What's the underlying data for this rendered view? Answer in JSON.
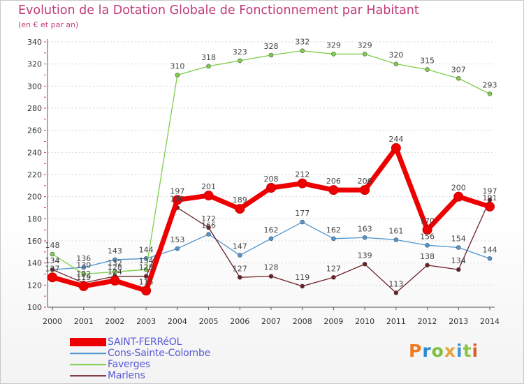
{
  "header": {
    "title": "Evolution de la Dotation Globale de Fonctionnement par Habitant",
    "subtitle": "(en € et par an)"
  },
  "chart_data": {
    "type": "line",
    "title": "Evolution de la Dotation Globale de Fonctionnement par Habitant",
    "subtitle": "(en € et par an)",
    "xlabel": "",
    "ylabel": "",
    "categories": [
      "2000",
      "2001",
      "2002",
      "2003",
      "2004",
      "2005",
      "2006",
      "2007",
      "2008",
      "2009",
      "2010",
      "2011",
      "2012",
      "2013",
      "2014"
    ],
    "ylim": [
      100,
      340
    ],
    "yticks": [
      100,
      120,
      140,
      160,
      180,
      200,
      220,
      240,
      260,
      280,
      300,
      320,
      340
    ],
    "grid": true,
    "legend_position": "bottom-left",
    "series": [
      {
        "name": "SAINT-FERRéOL",
        "color": "#ee0000",
        "values": [
          127,
          119,
          124,
          115,
          197,
          201,
          189,
          208,
          212,
          206,
          206,
          244,
          170,
          200,
          191
        ]
      },
      {
        "name": "Cons-Sainte-Colombe",
        "color": "#4f95cf",
        "values": [
          134,
          136,
          143,
          144,
          153,
          166,
          147,
          162,
          177,
          162,
          163,
          161,
          156,
          154,
          144
        ]
      },
      {
        "name": "Faverges",
        "color": "#7ccd4a",
        "values": [
          148,
          130,
          132,
          134,
          310,
          318,
          323,
          328,
          332,
          329,
          329,
          320,
          315,
          307,
          293
        ]
      },
      {
        "name": "Marlens",
        "color": "#6b1f24",
        "values": [
          134,
          122,
          128,
          128,
          190,
          172,
          127,
          128,
          119,
          127,
          139,
          113,
          138,
          134,
          197
        ]
      }
    ]
  },
  "brand": {
    "part1": "Pro",
    "part2": "x",
    "part3": "iti"
  }
}
